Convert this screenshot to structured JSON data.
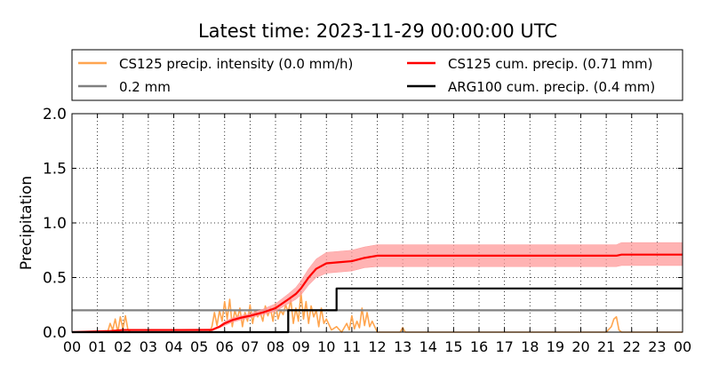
{
  "chart_data": {
    "type": "line",
    "title": "Latest time: 2023-11-29 00:00:00 UTC",
    "xlabel": "",
    "ylabel": "Precipitation",
    "xlim": [
      0,
      24
    ],
    "ylim": [
      0,
      2.0
    ],
    "grid": true,
    "legend_position": "top",
    "x_ticks": [
      "00",
      "01",
      "02",
      "03",
      "04",
      "05",
      "06",
      "07",
      "08",
      "09",
      "10",
      "11",
      "12",
      "13",
      "14",
      "15",
      "16",
      "17",
      "18",
      "19",
      "20",
      "21",
      "22",
      "23",
      "00"
    ],
    "y_ticks": [
      "0.0",
      "0.5",
      "1.0",
      "1.5",
      "2.0"
    ],
    "legend": [
      {
        "label": "CS125 precip. intensity (0.0 mm/h)",
        "color": "#ffa54f"
      },
      {
        "label": "CS125 cum. precip. (0.71 mm)",
        "color": "#ff0000"
      },
      {
        "label": "0.2 mm",
        "color": "#808080"
      },
      {
        "label": "ARG100 cum. precip. (0.4 mm)",
        "color": "#000000"
      }
    ],
    "series": [
      {
        "name": "CS125 precip. intensity (0.0 mm/h)",
        "color": "#ffa54f",
        "x": [
          0,
          1.4,
          1.5,
          1.6,
          1.7,
          1.8,
          1.9,
          2.0,
          2.1,
          2.2,
          2.3,
          3.0,
          4.0,
          5.0,
          5.4,
          5.5,
          5.6,
          5.7,
          5.8,
          5.9,
          6.0,
          6.1,
          6.2,
          6.3,
          6.4,
          6.5,
          6.6,
          6.7,
          6.8,
          6.9,
          7.0,
          7.1,
          7.2,
          7.3,
          7.4,
          7.5,
          7.6,
          7.7,
          7.8,
          7.9,
          8.0,
          8.1,
          8.2,
          8.3,
          8.4,
          8.5,
          8.6,
          8.7,
          8.8,
          8.9,
          9.0,
          9.1,
          9.2,
          9.3,
          9.4,
          9.5,
          9.6,
          9.7,
          9.8,
          9.9,
          10.0,
          10.2,
          10.4,
          10.6,
          10.8,
          10.9,
          11.0,
          11.1,
          11.2,
          11.3,
          11.4,
          11.5,
          11.6,
          11.7,
          11.8,
          12.0,
          12.9,
          13.0,
          13.1,
          13.2,
          14.0,
          20.0,
          21.0,
          21.2,
          21.3,
          21.4,
          21.5,
          21.6,
          22.0,
          24.0
        ],
        "y": [
          0,
          0,
          0.08,
          0.02,
          0.12,
          0.0,
          0.14,
          0.03,
          0.15,
          0.02,
          0,
          0,
          0,
          0,
          0,
          0.05,
          0.18,
          0.06,
          0.2,
          0.1,
          0.28,
          0.12,
          0.3,
          0.05,
          0.2,
          0.12,
          0.22,
          0.05,
          0.18,
          0.1,
          0.25,
          0.08,
          0.2,
          0.14,
          0.18,
          0.1,
          0.24,
          0.15,
          0.22,
          0.1,
          0.26,
          0.12,
          0.2,
          0.16,
          0.25,
          0.18,
          0.3,
          0.08,
          0.22,
          0.1,
          0.36,
          0.12,
          0.28,
          0.08,
          0.24,
          0.14,
          0.2,
          0.05,
          0.22,
          0.08,
          0.12,
          0.02,
          0.05,
          0.0,
          0.08,
          0.02,
          0.15,
          0.03,
          0.1,
          0.04,
          0.22,
          0.06,
          0.18,
          0.05,
          0.1,
          0,
          0,
          0.04,
          0.0,
          0,
          0,
          0,
          0,
          0.05,
          0.12,
          0.14,
          0.02,
          0,
          0,
          0
        ]
      },
      {
        "name": "0.2 mm",
        "color": "#808080",
        "x": [
          0,
          24
        ],
        "y": [
          0.2,
          0.2
        ]
      },
      {
        "name": "CS125 cum. precip. (0.71 mm)",
        "color": "#ff0000",
        "x": [
          0,
          1.5,
          2.0,
          5.5,
          5.8,
          6.0,
          6.3,
          6.6,
          7.0,
          7.5,
          8.0,
          8.5,
          8.8,
          9.0,
          9.3,
          9.6,
          10.0,
          10.5,
          11.0,
          11.5,
          12.0,
          13.0,
          21.0,
          21.4,
          21.6,
          24.0
        ],
        "y": [
          0,
          0.01,
          0.02,
          0.02,
          0.05,
          0.08,
          0.11,
          0.13,
          0.15,
          0.18,
          0.22,
          0.3,
          0.35,
          0.4,
          0.5,
          0.58,
          0.63,
          0.64,
          0.65,
          0.68,
          0.7,
          0.7,
          0.7,
          0.7,
          0.71,
          0.71
        ],
        "band_lower": [
          0,
          0.01,
          0.02,
          0.02,
          0.04,
          0.06,
          0.09,
          0.11,
          0.13,
          0.16,
          0.19,
          0.26,
          0.3,
          0.34,
          0.43,
          0.5,
          0.54,
          0.55,
          0.56,
          0.59,
          0.6,
          0.6,
          0.6,
          0.6,
          0.61,
          0.61
        ],
        "band_upper": [
          0,
          0.01,
          0.02,
          0.03,
          0.06,
          0.1,
          0.13,
          0.15,
          0.17,
          0.21,
          0.26,
          0.35,
          0.41,
          0.47,
          0.58,
          0.67,
          0.73,
          0.74,
          0.75,
          0.78,
          0.8,
          0.8,
          0.8,
          0.8,
          0.82,
          0.82
        ],
        "band_color": "#ff9999"
      },
      {
        "name": "ARG100 cum. precip. (0.4 mm)",
        "color": "#000000",
        "step": true,
        "x": [
          0,
          8.5,
          8.5,
          10.4,
          10.4,
          24
        ],
        "y": [
          0,
          0,
          0.2,
          0.2,
          0.4,
          0.4
        ]
      }
    ]
  }
}
